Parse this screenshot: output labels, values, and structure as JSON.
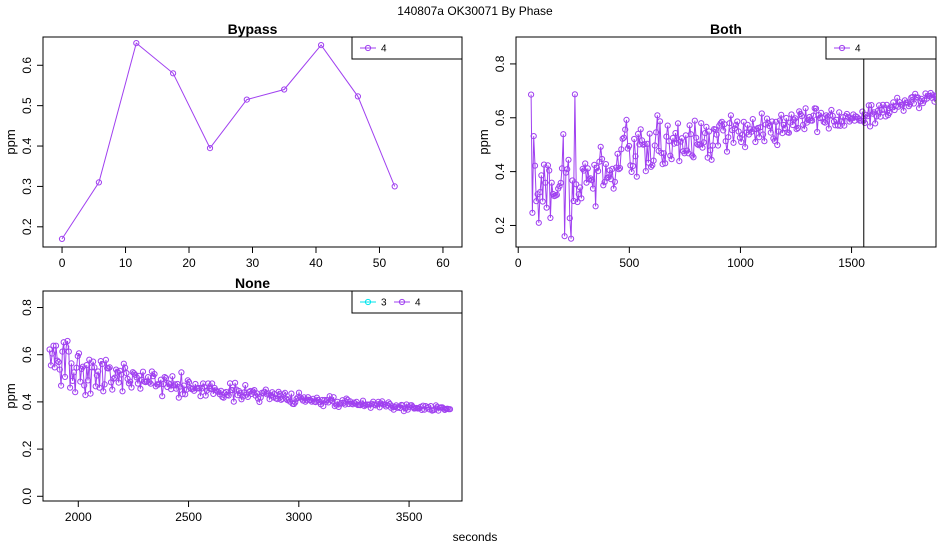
{
  "figure": {
    "title": "140807a    OK30071   By Phase",
    "xlabel": "seconds",
    "colors": {
      "series_4": "#a040f0",
      "series_3": "#00e5ee",
      "axis": "#000000"
    }
  },
  "chart_data": [
    {
      "type": "line",
      "title": "Bypass",
      "ylabel": "ppm",
      "xlim": [
        -3,
        63
      ],
      "ylim": [
        0.15,
        0.67
      ],
      "xticks": [
        0,
        10,
        20,
        30,
        40,
        50,
        60
      ],
      "yticks": [
        0.2,
        0.3,
        0.4,
        0.5,
        0.6
      ],
      "legend": {
        "placement": "top-right",
        "entries": [
          "4"
        ]
      },
      "series": [
        {
          "name": "4",
          "color": "#a040f0",
          "x": [
            0,
            5.8,
            11.7,
            17.5,
            23.3,
            29.1,
            35.0,
            40.8,
            46.6,
            52.4
          ],
          "y": [
            0.17,
            0.31,
            0.655,
            0.58,
            0.395,
            0.515,
            0.54,
            0.65,
            0.523,
            0.3
          ]
        }
      ]
    },
    {
      "type": "line",
      "title": "Both",
      "ylabel": "ppm",
      "xlim": [
        -10,
        1880
      ],
      "ylim": [
        0.12,
        0.9
      ],
      "xticks": [
        0,
        500,
        1000,
        1500
      ],
      "yticks": [
        0.2,
        0.4,
        0.6,
        0.8
      ],
      "vline": 1555,
      "legend": {
        "placement": "top-right",
        "entries": [
          "4"
        ]
      },
      "series": [
        {
          "name": "4",
          "color": "#a040f0",
          "x_start": 58,
          "x_step": 5.8,
          "y": [
            0.686,
            0.247,
            0.532,
            0.422,
            0.29,
            0.316,
            0.21,
            0.324,
            0.386,
            0.289,
            0.426,
            0.359,
            0.266,
            0.423,
            0.404,
            0.228,
            0.359,
            0.317,
            0.309,
            0.311,
            0.314,
            0.337,
            0.346,
            0.358,
            0.412,
            0.539,
            0.16,
            0.396,
            0.409,
            0.444,
            0.227,
            0.151,
            0.367,
            0.291,
            0.687,
            0.353,
            0.287,
            0.316,
            0.341,
            0.301,
            0.41,
            0.404,
            0.43,
            0.359,
            0.412,
            0.371,
            0.375,
            0.368,
            0.337,
            0.425,
            0.271,
            0.415,
            0.402,
            0.437,
            0.492,
            0.447,
            0.349,
            0.361,
            0.428,
            0.377,
            0.379,
            0.405,
            0.372,
            0.41,
            0.337,
            0.362,
            0.415,
            0.466,
            0.409,
            0.413,
            0.483,
            0.522,
            0.526,
            0.556,
            0.592,
            0.486,
            0.495,
            0.423,
            0.399,
            0.421,
            0.521,
            0.457,
            0.381,
            0.54,
            0.501,
            0.557,
            0.516,
            0.5,
            0.502,
            0.402,
            0.503,
            0.433,
            0.541,
            0.418,
            0.424,
            0.441,
            0.497,
            0.546,
            0.609,
            0.477,
            0.587,
            0.47,
            0.428,
            0.468,
            0.431,
            0.53,
            0.571,
            0.513,
            0.459,
            0.446,
            0.525,
            0.504,
            0.543,
            0.507,
            0.579,
            0.439,
            0.511,
            0.524,
            0.476,
            0.468,
            0.535,
            0.478,
            0.468,
            0.572,
            0.539,
            0.46,
            0.453,
            0.589,
            0.526,
            0.502,
            0.498,
            0.501,
            0.58,
            0.489,
            0.509,
            0.543,
            0.566,
            0.452,
            0.549,
            0.479,
            0.444,
            0.497,
            0.558,
            0.556,
            0.537,
            0.497,
            0.571,
            0.579,
            0.585,
            0.553,
            0.576,
            0.513,
            0.474,
            0.528,
            0.58,
            0.609,
            0.554,
            0.507,
            0.56,
            0.573,
            0.586,
            0.549,
            0.526,
            0.51,
            0.537,
            0.585,
            0.491,
            0.545,
            0.574,
            0.538,
            0.557,
            0.548,
            0.595,
            0.557,
            0.51,
            0.557,
            0.562,
            0.528,
            0.565,
            0.616,
            0.538,
            0.513,
            0.575,
            0.597,
            0.579,
            0.569,
            0.545,
            0.586,
            0.523,
            0.514,
            0.585,
            0.499,
            0.549,
            0.59,
            0.611,
            0.543,
            0.573,
            0.562,
            0.599,
            0.546,
            0.544,
            0.582,
            0.612,
            0.573,
            0.593,
            0.598,
            0.558,
            0.562,
            0.624,
            0.614,
            0.606,
            0.574,
            0.558,
            0.635,
            0.582,
            0.592,
            0.603,
            0.59,
            0.589,
            0.608,
            0.635,
            0.634,
            0.547,
            0.61,
            0.599,
            0.618,
            0.598,
            0.585,
            0.582,
            0.609,
            0.604,
            0.56,
            0.609,
            0.629,
            0.607,
            0.586,
            0.572,
            0.592,
            0.571,
            0.62,
            0.57,
            0.587,
            0.602,
            0.571,
            0.606,
            0.614,
            0.602,
            0.586,
            0.594,
            0.598,
            0.612,
            0.589,
            0.605,
            0.602,
            0.597,
            0.589,
            0.589,
            0.623,
            0.589,
            0.581,
            0.611,
            0.606,
            0.646,
            0.568,
            0.647,
            0.615,
            0.62,
            0.579,
            0.605,
            0.626,
            0.646,
            0.604,
            0.628,
            0.648,
            0.63,
            0.605,
            0.648,
            0.61,
            0.618,
            0.641,
            0.638,
            0.657,
            0.629,
            0.644,
            0.674,
            0.641,
            0.658,
            0.648,
            0.649,
            0.626,
            0.665,
            0.656,
            0.657,
            0.643,
            0.65,
            0.675,
            0.677,
            0.653,
            0.689,
            0.675,
            0.676,
            0.636,
            0.661,
            0.67,
            0.654,
            0.664,
            0.69,
            0.671,
            0.682,
            0.681,
            0.692,
            0.674,
            0.684,
            0.66,
            0.681,
            0.683,
            0.677,
            0.686,
            0.718
          ]
        }
      ]
    },
    {
      "type": "line",
      "title": "None",
      "ylabel": "ppm",
      "xlim": [
        1840,
        3740
      ],
      "ylim": [
        -0.02,
        0.87
      ],
      "xticks": [
        2000,
        2500,
        3000,
        3500
      ],
      "yticks": [
        0.0,
        0.2,
        0.4,
        0.6,
        0.8
      ],
      "legend": {
        "placement": "top-right",
        "entries": [
          "3",
          "4"
        ]
      },
      "series": [
        {
          "name": "3",
          "color": "#00e5ee",
          "x": [],
          "y": []
        },
        {
          "name": "4",
          "color": "#a040f0",
          "x_start": 1870,
          "x_step": 5.8,
          "y": [
            0.622,
            0.555,
            0.605,
            0.638,
            0.546,
            0.638,
            0.575,
            0.569,
            0.537,
            0.469,
            0.613,
            0.653,
            0.506,
            0.633,
            0.658,
            0.613,
            0.46,
            0.563,
            0.489,
            0.525,
            0.441,
            0.545,
            0.594,
            0.606,
            0.486,
            0.54,
            0.549,
            0.47,
            0.429,
            0.556,
            0.491,
            0.579,
            0.435,
            0.546,
            0.571,
            0.546,
            0.466,
            0.512,
            0.529,
            0.46,
            0.573,
            0.56,
            0.445,
            0.474,
            0.578,
            0.543,
            0.542,
            0.546,
            0.483,
            0.452,
            0.498,
            0.503,
            0.537,
            0.528,
            0.482,
            0.532,
            0.516,
            0.445,
            0.562,
            0.545,
            0.522,
            0.498,
            0.479,
            0.486,
            0.461,
            0.526,
            0.521,
            0.515,
            0.504,
            0.478,
            0.51,
            0.456,
            0.494,
            0.528,
            0.486,
            0.484,
            0.486,
            0.505,
            0.483,
            0.477,
            0.529,
            0.509,
            0.518,
            0.466,
            0.474,
            0.473,
            0.477,
            0.494,
            0.424,
            0.476,
            0.505,
            0.501,
            0.463,
            0.479,
            0.474,
            0.454,
            0.509,
            0.469,
            0.474,
            0.456,
            0.476,
            0.418,
            0.465,
            0.525,
            0.433,
            0.469,
            0.432,
            0.452,
            0.491,
            0.484,
            0.459,
            0.454,
            0.456,
            0.447,
            0.476,
            0.457,
            0.457,
            0.459,
            0.424,
            0.457,
            0.478,
            0.464,
            0.427,
            0.448,
            0.478,
            0.457,
            0.455,
            0.478,
            0.434,
            0.459,
            0.449,
            0.445,
            0.441,
            0.432,
            0.447,
            0.421,
            0.418,
            0.437,
            0.442,
            0.43,
            0.427,
            0.479,
            0.45,
            0.45,
            0.401,
            0.481,
            0.452,
            0.429,
            0.446,
            0.437,
            0.411,
            0.423,
            0.44,
            0.471,
            0.431,
            0.421,
            0.442,
            0.446,
            0.434,
            0.444,
            0.45,
            0.427,
            0.436,
            0.414,
            0.4,
            0.419,
            0.438,
            0.436,
            0.443,
            0.452,
            0.432,
            0.436,
            0.412,
            0.428,
            0.441,
            0.419,
            0.433,
            0.415,
            0.412,
            0.443,
            0.434,
            0.409,
            0.413,
            0.432,
            0.438,
            0.413,
            0.407,
            0.411,
            0.401,
            0.435,
            0.392,
            0.391,
            0.398,
            0.413,
            0.419,
            0.439,
            0.419,
            0.414,
            0.406,
            0.419,
            0.401,
            0.407,
            0.42,
            0.409,
            0.407,
            0.401,
            0.413,
            0.401,
            0.399,
            0.418,
            0.408,
            0.399,
            0.39,
            0.408,
            0.382,
            0.408,
            0.401,
            0.408,
            0.398,
            0.424,
            0.408,
            0.403,
            0.42,
            0.382,
            0.388,
            0.4,
            0.379,
            0.39,
            0.395,
            0.407,
            0.395,
            0.389,
            0.414,
            0.409,
            0.391,
            0.402,
            0.393,
            0.39,
            0.397,
            0.393,
            0.4,
            0.387,
            0.387,
            0.386,
            0.393,
            0.405,
            0.382,
            0.386,
            0.389,
            0.388,
            0.389,
            0.375,
            0.392,
            0.401,
            0.389,
            0.385,
            0.39,
            0.4,
            0.377,
            0.394,
            0.402,
            0.388,
            0.39,
            0.381,
            0.386,
            0.398,
            0.391,
            0.375,
            0.381,
            0.367,
            0.379,
            0.385,
            0.375,
            0.379,
            0.374,
            0.387,
            0.385,
            0.361,
            0.373,
            0.389,
            0.367,
            0.378,
            0.385,
            0.386,
            0.379,
            0.372,
            0.373,
            0.374,
            0.372,
            0.373,
            0.379,
            0.366,
            0.384,
            0.367,
            0.382,
            0.375,
            0.378,
            0.368,
            0.382,
            0.363,
            0.365,
            0.367,
            0.385,
            0.379,
            0.363,
            0.376,
            0.377,
            0.377,
            0.372,
            0.366,
            0.37,
            0.371,
            0.369,
            0.369
          ]
        }
      ]
    }
  ]
}
